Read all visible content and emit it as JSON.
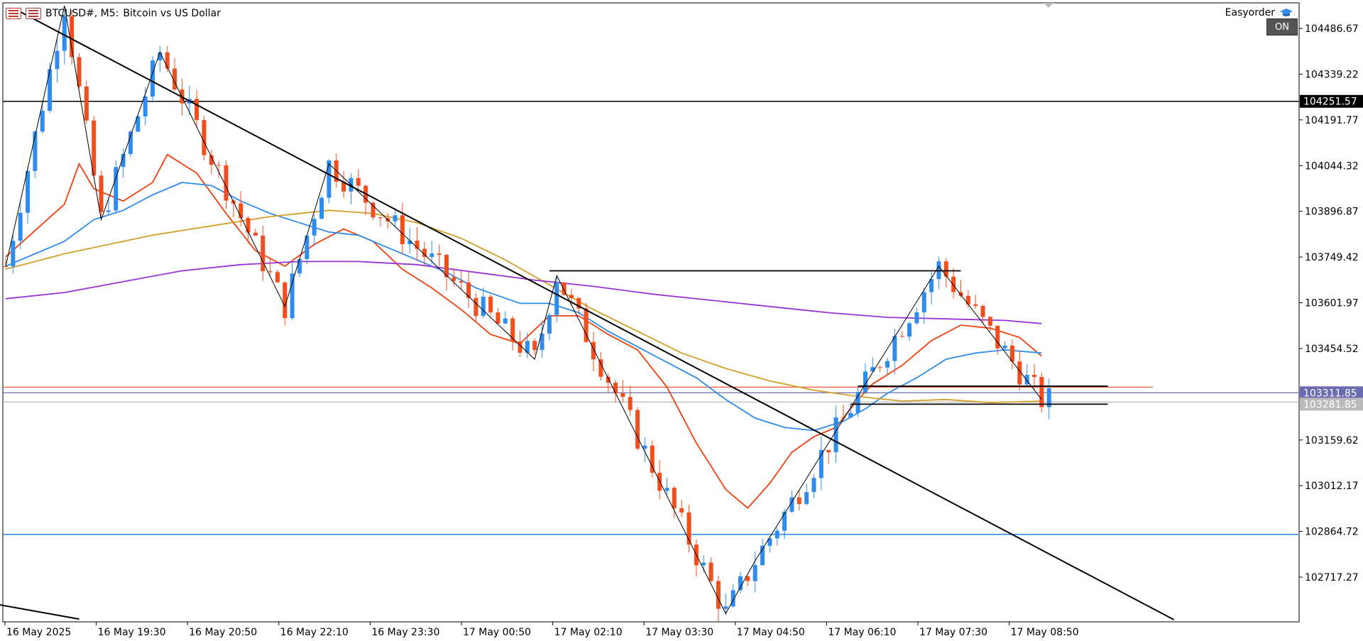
{
  "header": {
    "symbol": "BTCUSD#, M5:",
    "description": "Bitcoin vs US Dollar",
    "chart_icon": "chart-window-icon"
  },
  "expert": {
    "name": "Easyorder",
    "icon": "graduation-cap-icon",
    "status": "ON"
  },
  "colors": {
    "bull": "#2f8ceb",
    "bear": "#f24d1c",
    "ma_fast": "#f2400e",
    "ma_mid": "#2f8ceb",
    "ma_slow": "#d4a02c",
    "ma_long": "#9a34d6",
    "support_line": "#2f8ceb",
    "bid_line": "#e85a3a",
    "ask_line": "#6b6bb2"
  },
  "chart_data": {
    "type": "candlestick",
    "symbol": "BTCUSD#",
    "timeframe": "M5",
    "ylim": [
      102580,
      104560
    ],
    "y_ticks": [
      "104486.67",
      "104339.22",
      "104191.77",
      "104044.32",
      "103896.87",
      "103749.42",
      "103601.97",
      "103454.52",
      "103159.62",
      "103012.17",
      "102864.72",
      "102717.27"
    ],
    "x_ticks": [
      "16 May 2025",
      "16 May 19:30",
      "16 May 20:50",
      "16 May 22:10",
      "16 May 23:30",
      "17 May 00:50",
      "17 May 02:10",
      "17 May 03:30",
      "17 May 04:50",
      "17 May 06:10",
      "17 May 07:30",
      "17 May 08:50"
    ],
    "price_labels": [
      {
        "name": "resistance-level",
        "value": "104251.57",
        "price": 104251.57
      },
      {
        "name": "ask-price",
        "value": "103311.85",
        "price": 103311.85
      },
      {
        "name": "bid-price",
        "value": "103281.85",
        "price": 103281.85
      }
    ],
    "horizontal_lines": [
      {
        "name": "resistance-line",
        "price": 104251.57,
        "color": "#000000"
      },
      {
        "name": "support-line",
        "price": 102855,
        "color": "#2f8ceb"
      },
      {
        "name": "order-line",
        "price": 103330,
        "color": "#e85a3a"
      },
      {
        "name": "ask-line",
        "price": 103311.85,
        "color": "#6b6bb2"
      },
      {
        "name": "bid-line",
        "price": 103281.85,
        "color": "#bbbbbb"
      }
    ],
    "trend_lines": [
      {
        "name": "main-downtrend-line",
        "x1": 2,
        "y1": 104540,
        "x2": 159,
        "y2": 102580
      },
      {
        "name": "lower-falling-line",
        "x1": -6,
        "y1": 102650,
        "x2": 10,
        "y2": 102582
      }
    ],
    "segments": [
      {
        "name": "swing-high-range-line",
        "x1": 74,
        "y1": 103705,
        "x2": 130,
        "y2": 103705
      },
      {
        "name": "range-top-line",
        "x1": 116,
        "y1": 103333,
        "x2": 150,
        "y2": 103333
      },
      {
        "name": "range-bottom-line",
        "x1": 115,
        "y1": 103275,
        "x2": 150,
        "y2": 103275
      }
    ],
    "zigzag": [
      [
        0,
        103720
      ],
      [
        8,
        104560
      ],
      [
        13,
        103870
      ],
      [
        21,
        104410
      ],
      [
        38,
        103590
      ],
      [
        44,
        104050
      ],
      [
        72,
        103420
      ],
      [
        75,
        103690
      ],
      [
        98,
        102600
      ],
      [
        102,
        102770
      ],
      [
        127,
        103720
      ],
      [
        141,
        103290
      ]
    ],
    "series": [
      {
        "name": "MA fast",
        "color": "#f2400e",
        "points": [
          [
            0,
            103750
          ],
          [
            8,
            103920
          ],
          [
            10,
            104050
          ],
          [
            12,
            103970
          ],
          [
            16,
            103930
          ],
          [
            20,
            103990
          ],
          [
            22,
            104080
          ],
          [
            26,
            104020
          ],
          [
            30,
            103890
          ],
          [
            34,
            103770
          ],
          [
            38,
            103720
          ],
          [
            42,
            103790
          ],
          [
            46,
            103840
          ],
          [
            50,
            103800
          ],
          [
            54,
            103710
          ],
          [
            58,
            103650
          ],
          [
            62,
            103580
          ],
          [
            66,
            103500
          ],
          [
            70,
            103470
          ],
          [
            74,
            103560
          ],
          [
            78,
            103560
          ],
          [
            82,
            103500
          ],
          [
            86,
            103450
          ],
          [
            90,
            103330
          ],
          [
            94,
            103150
          ],
          [
            98,
            103000
          ],
          [
            101,
            102940
          ],
          [
            104,
            103020
          ],
          [
            107,
            103120
          ],
          [
            110,
            103170
          ],
          [
            113,
            103200
          ],
          [
            116,
            103290
          ],
          [
            118,
            103340
          ],
          [
            122,
            103400
          ],
          [
            126,
            103480
          ],
          [
            130,
            103530
          ],
          [
            134,
            103520
          ],
          [
            138,
            103490
          ],
          [
            141,
            103430
          ]
        ]
      },
      {
        "name": "MA mid",
        "color": "#2f8ceb",
        "points": [
          [
            0,
            103720
          ],
          [
            8,
            103800
          ],
          [
            12,
            103870
          ],
          [
            16,
            103900
          ],
          [
            20,
            103950
          ],
          [
            24,
            103990
          ],
          [
            28,
            103980
          ],
          [
            32,
            103930
          ],
          [
            36,
            103890
          ],
          [
            40,
            103860
          ],
          [
            44,
            103830
          ],
          [
            48,
            103820
          ],
          [
            52,
            103780
          ],
          [
            56,
            103740
          ],
          [
            60,
            103700
          ],
          [
            64,
            103650
          ],
          [
            70,
            103600
          ],
          [
            74,
            103600
          ],
          [
            78,
            103570
          ],
          [
            82,
            103510
          ],
          [
            86,
            103460
          ],
          [
            90,
            103410
          ],
          [
            94,
            103360
          ],
          [
            98,
            103290
          ],
          [
            102,
            103230
          ],
          [
            106,
            103200
          ],
          [
            110,
            103190
          ],
          [
            114,
            103220
          ],
          [
            117,
            103260
          ],
          [
            120,
            103310
          ],
          [
            124,
            103360
          ],
          [
            128,
            103420
          ],
          [
            132,
            103440
          ],
          [
            136,
            103450
          ],
          [
            141,
            103440
          ]
        ]
      },
      {
        "name": "MA slow",
        "color": "#d4a02c",
        "points": [
          [
            0,
            103710
          ],
          [
            8,
            103760
          ],
          [
            14,
            103790
          ],
          [
            20,
            103820
          ],
          [
            28,
            103850
          ],
          [
            36,
            103880
          ],
          [
            44,
            103900
          ],
          [
            50,
            103890
          ],
          [
            56,
            103860
          ],
          [
            62,
            103810
          ],
          [
            68,
            103740
          ],
          [
            74,
            103660
          ],
          [
            80,
            103580
          ],
          [
            86,
            103510
          ],
          [
            92,
            103440
          ],
          [
            98,
            103390
          ],
          [
            104,
            103350
          ],
          [
            110,
            103320
          ],
          [
            116,
            103300
          ],
          [
            122,
            103285
          ],
          [
            128,
            103290
          ],
          [
            134,
            103280
          ],
          [
            141,
            103285
          ]
        ]
      },
      {
        "name": "MA long",
        "color": "#9a34d6",
        "points": [
          [
            0,
            103615
          ],
          [
            8,
            103635
          ],
          [
            16,
            103670
          ],
          [
            24,
            103705
          ],
          [
            32,
            103725
          ],
          [
            40,
            103735
          ],
          [
            48,
            103735
          ],
          [
            56,
            103725
          ],
          [
            64,
            103700
          ],
          [
            72,
            103675
          ],
          [
            80,
            103655
          ],
          [
            88,
            103630
          ],
          [
            96,
            103610
          ],
          [
            104,
            103590
          ],
          [
            112,
            103570
          ],
          [
            120,
            103555
          ],
          [
            128,
            103550
          ],
          [
            136,
            103545
          ],
          [
            141,
            103535
          ]
        ]
      }
    ]
  }
}
